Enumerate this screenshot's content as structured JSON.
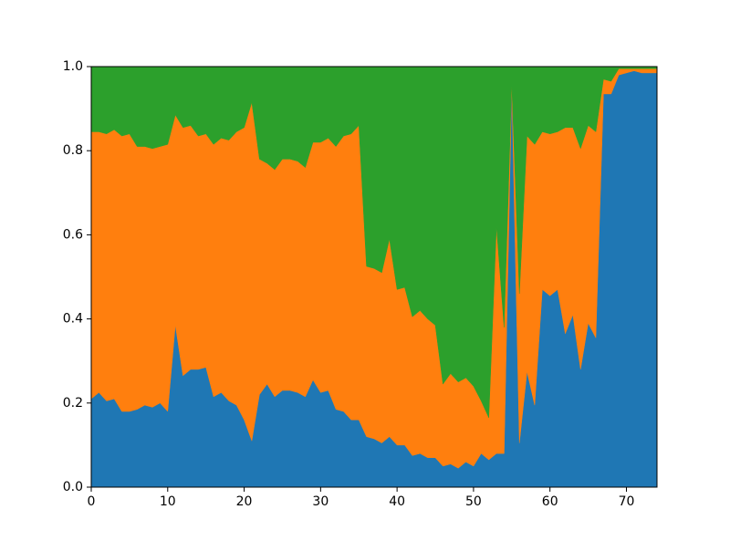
{
  "chart_data": {
    "type": "stackplot",
    "x": [
      0,
      1,
      2,
      3,
      4,
      5,
      6,
      7,
      8,
      9,
      10,
      11,
      12,
      13,
      14,
      15,
      16,
      17,
      18,
      19,
      20,
      21,
      22,
      23,
      24,
      25,
      26,
      27,
      28,
      29,
      30,
      31,
      32,
      33,
      34,
      35,
      36,
      37,
      38,
      39,
      40,
      41,
      42,
      43,
      44,
      45,
      46,
      47,
      48,
      49,
      50,
      51,
      52,
      53,
      54,
      55,
      56,
      57,
      58,
      59,
      60,
      61,
      62,
      63,
      64,
      65,
      66,
      67,
      68,
      69,
      70,
      71,
      72,
      73,
      74
    ],
    "series": [
      {
        "color": "#1f77b4",
        "values": [
          0.21,
          0.225,
          0.205,
          0.21,
          0.18,
          0.18,
          0.185,
          0.195,
          0.19,
          0.2,
          0.18,
          0.385,
          0.265,
          0.28,
          0.28,
          0.285,
          0.215,
          0.225,
          0.205,
          0.195,
          0.16,
          0.11,
          0.22,
          0.245,
          0.215,
          0.23,
          0.23,
          0.225,
          0.215,
          0.255,
          0.225,
          0.23,
          0.185,
          0.18,
          0.16,
          0.16,
          0.12,
          0.115,
          0.105,
          0.12,
          0.1,
          0.1,
          0.075,
          0.08,
          0.07,
          0.07,
          0.05,
          0.055,
          0.045,
          0.06,
          0.05,
          0.08,
          0.065,
          0.08,
          0.08,
          0.955,
          0.105,
          0.275,
          0.195,
          0.47,
          0.455,
          0.47,
          0.365,
          0.41,
          0.28,
          0.39,
          0.355,
          0.935,
          0.935,
          0.98,
          0.985,
          0.99,
          0.985,
          0.985,
          0.985
        ]
      },
      {
        "color": "#ff7f0e",
        "values": [
          0.635,
          0.62,
          0.635,
          0.64,
          0.655,
          0.66,
          0.625,
          0.615,
          0.615,
          0.61,
          0.635,
          0.5,
          0.59,
          0.58,
          0.555,
          0.555,
          0.6,
          0.605,
          0.62,
          0.65,
          0.695,
          0.805,
          0.56,
          0.525,
          0.54,
          0.55,
          0.55,
          0.55,
          0.545,
          0.565,
          0.595,
          0.6,
          0.625,
          0.655,
          0.68,
          0.7,
          0.405,
          0.405,
          0.405,
          0.47,
          0.37,
          0.375,
          0.33,
          0.34,
          0.33,
          0.315,
          0.195,
          0.215,
          0.205,
          0.2,
          0.19,
          0.125,
          0.1,
          0.54,
          0.3,
          0.005,
          0.355,
          0.56,
          0.62,
          0.375,
          0.385,
          0.375,
          0.49,
          0.445,
          0.525,
          0.47,
          0.49,
          0.035,
          0.03,
          0.015,
          0.01,
          0.005,
          0.01,
          0.01,
          0.01
        ]
      },
      {
        "color": "#2ca02c",
        "values": [
          0.155,
          0.155,
          0.16,
          0.15,
          0.165,
          0.16,
          0.19,
          0.19,
          0.195,
          0.19,
          0.185,
          0.115,
          0.145,
          0.14,
          0.165,
          0.16,
          0.185,
          0.17,
          0.175,
          0.155,
          0.145,
          0.085,
          0.22,
          0.23,
          0.245,
          0.22,
          0.22,
          0.225,
          0.24,
          0.18,
          0.18,
          0.17,
          0.19,
          0.165,
          0.16,
          0.14,
          0.475,
          0.48,
          0.49,
          0.41,
          0.53,
          0.525,
          0.595,
          0.58,
          0.6,
          0.615,
          0.755,
          0.73,
          0.75,
          0.74,
          0.76,
          0.795,
          0.835,
          0.38,
          0.62,
          0.04,
          0.54,
          0.165,
          0.185,
          0.155,
          0.16,
          0.155,
          0.145,
          0.145,
          0.195,
          0.14,
          0.155,
          0.03,
          0.035,
          0.005,
          0.005,
          0.005,
          0.005,
          0.005,
          0.005
        ]
      }
    ],
    "xlim": [
      0,
      74
    ],
    "ylim": [
      0,
      1
    ],
    "xticks": [
      0,
      10,
      20,
      30,
      40,
      50,
      60,
      70
    ],
    "yticks": [
      {
        "value": 0,
        "label": "0.0"
      },
      0.2,
      0.4,
      0.6,
      0.8,
      {
        "value": 1,
        "label": "1.0"
      }
    ],
    "grid": false
  }
}
